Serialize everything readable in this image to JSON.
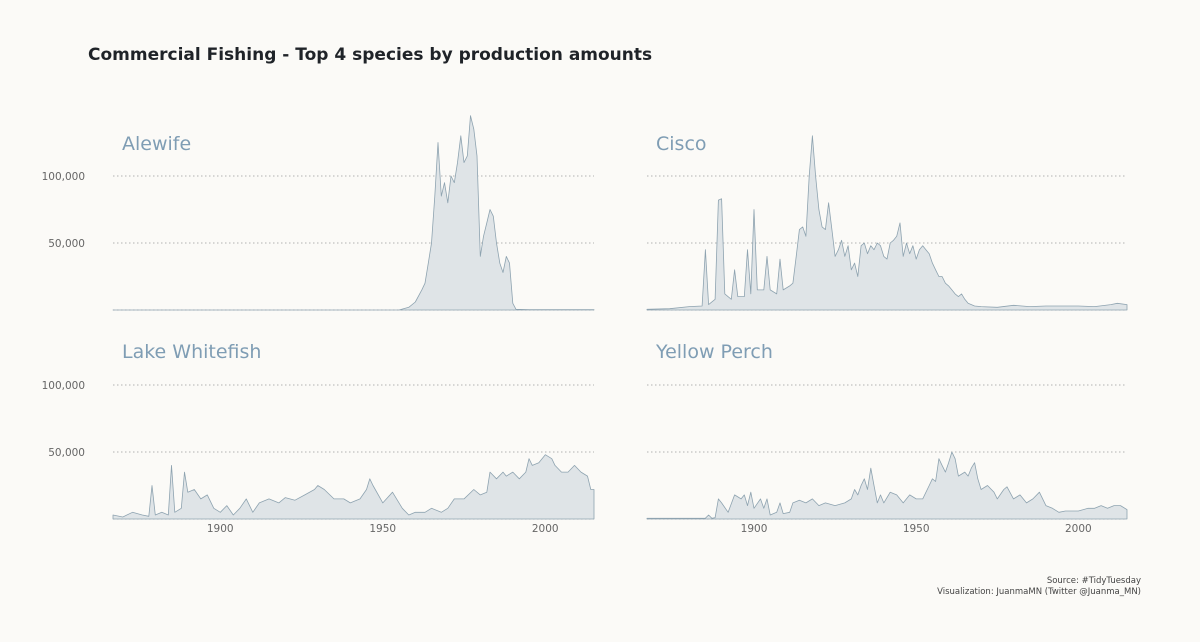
{
  "title": "Commercial Fishing - Top 4 species by production amounts",
  "caption": {
    "source": "Source: #TidyTuesday",
    "visualization": "Visualization: JuanmaMN (Twitter @Juanma_MN)"
  },
  "chart_data": {
    "type": "area",
    "facet_layout": "2x2",
    "xlim": [
      1867,
      2015
    ],
    "ylim": [
      0,
      140000
    ],
    "x_ticks": [
      1900,
      1950,
      2000
    ],
    "x_tick_labels": [
      "1900",
      "1950",
      "2000"
    ],
    "y_ticks": [
      50000,
      100000
    ],
    "y_tick_labels": [
      "50,000",
      "100,000"
    ],
    "grid": "horizontal dotted",
    "colors": {
      "fill": "#dfe4e7",
      "stroke": "#8ea3b0",
      "label": "#7f9db4"
    },
    "panels": [
      {
        "name": "Alewife",
        "points": [
          [
            1867,
            0
          ],
          [
            1955,
            0
          ],
          [
            1958,
            2000
          ],
          [
            1960,
            6000
          ],
          [
            1962,
            15000
          ],
          [
            1963,
            20000
          ],
          [
            1964,
            35000
          ],
          [
            1965,
            50000
          ],
          [
            1966,
            85000
          ],
          [
            1967,
            125000
          ],
          [
            1968,
            85000
          ],
          [
            1969,
            95000
          ],
          [
            1970,
            80000
          ],
          [
            1971,
            100000
          ],
          [
            1972,
            95000
          ],
          [
            1973,
            110000
          ],
          [
            1974,
            130000
          ],
          [
            1975,
            110000
          ],
          [
            1976,
            115000
          ],
          [
            1977,
            145000
          ],
          [
            1978,
            135000
          ],
          [
            1979,
            115000
          ],
          [
            1980,
            40000
          ],
          [
            1981,
            55000
          ],
          [
            1982,
            65000
          ],
          [
            1983,
            75000
          ],
          [
            1984,
            70000
          ],
          [
            1985,
            50000
          ],
          [
            1986,
            35000
          ],
          [
            1987,
            28000
          ],
          [
            1988,
            40000
          ],
          [
            1989,
            35000
          ],
          [
            1990,
            5000
          ],
          [
            1991,
            500
          ],
          [
            1995,
            300
          ],
          [
            2015,
            300
          ]
        ]
      },
      {
        "name": "Cisco",
        "points": [
          [
            1867,
            500
          ],
          [
            1874,
            1000
          ],
          [
            1880,
            2500
          ],
          [
            1884,
            3000
          ],
          [
            1885,
            45000
          ],
          [
            1886,
            4000
          ],
          [
            1888,
            8000
          ],
          [
            1889,
            82000
          ],
          [
            1890,
            83000
          ],
          [
            1891,
            12000
          ],
          [
            1893,
            8000
          ],
          [
            1894,
            30000
          ],
          [
            1895,
            10000
          ],
          [
            1897,
            10000
          ],
          [
            1898,
            45000
          ],
          [
            1899,
            12000
          ],
          [
            1900,
            75000
          ],
          [
            1901,
            15000
          ],
          [
            1903,
            15000
          ],
          [
            1904,
            40000
          ],
          [
            1905,
            15000
          ],
          [
            1907,
            12000
          ],
          [
            1908,
            38000
          ],
          [
            1909,
            15000
          ],
          [
            1911,
            18000
          ],
          [
            1912,
            20000
          ],
          [
            1913,
            40000
          ],
          [
            1914,
            60000
          ],
          [
            1915,
            62000
          ],
          [
            1916,
            55000
          ],
          [
            1917,
            100000
          ],
          [
            1918,
            130000
          ],
          [
            1919,
            100000
          ],
          [
            1920,
            75000
          ],
          [
            1921,
            62000
          ],
          [
            1922,
            60000
          ],
          [
            1923,
            80000
          ],
          [
            1924,
            60000
          ],
          [
            1925,
            40000
          ],
          [
            1926,
            45000
          ],
          [
            1927,
            52000
          ],
          [
            1928,
            40000
          ],
          [
            1929,
            48000
          ],
          [
            1930,
            30000
          ],
          [
            1931,
            35000
          ],
          [
            1932,
            25000
          ],
          [
            1933,
            48000
          ],
          [
            1934,
            50000
          ],
          [
            1935,
            42000
          ],
          [
            1936,
            48000
          ],
          [
            1937,
            45000
          ],
          [
            1938,
            50000
          ],
          [
            1939,
            48000
          ],
          [
            1940,
            40000
          ],
          [
            1941,
            38000
          ],
          [
            1942,
            50000
          ],
          [
            1943,
            52000
          ],
          [
            1944,
            55000
          ],
          [
            1945,
            65000
          ],
          [
            1946,
            40000
          ],
          [
            1947,
            50000
          ],
          [
            1948,
            42000
          ],
          [
            1949,
            48000
          ],
          [
            1950,
            38000
          ],
          [
            1951,
            45000
          ],
          [
            1952,
            48000
          ],
          [
            1953,
            45000
          ],
          [
            1954,
            42000
          ],
          [
            1955,
            35000
          ],
          [
            1956,
            30000
          ],
          [
            1957,
            25000
          ],
          [
            1958,
            25000
          ],
          [
            1959,
            20000
          ],
          [
            1960,
            18000
          ],
          [
            1961,
            15000
          ],
          [
            1962,
            12000
          ],
          [
            1963,
            10000
          ],
          [
            1964,
            12000
          ],
          [
            1965,
            8000
          ],
          [
            1966,
            5000
          ],
          [
            1968,
            3000
          ],
          [
            1970,
            2500
          ],
          [
            1975,
            2000
          ],
          [
            1980,
            3500
          ],
          [
            1985,
            2500
          ],
          [
            1990,
            3000
          ],
          [
            1995,
            3000
          ],
          [
            2000,
            3000
          ],
          [
            2005,
            2500
          ],
          [
            2010,
            4000
          ],
          [
            2012,
            5000
          ],
          [
            2015,
            4000
          ]
        ]
      },
      {
        "name": "Lake Whitefish",
        "points": [
          [
            1867,
            3000
          ],
          [
            1870,
            1500
          ],
          [
            1873,
            5000
          ],
          [
            1876,
            3000
          ],
          [
            1878,
            2000
          ],
          [
            1879,
            25000
          ],
          [
            1880,
            3000
          ],
          [
            1882,
            5000
          ],
          [
            1884,
            3000
          ],
          [
            1885,
            40000
          ],
          [
            1886,
            5000
          ],
          [
            1888,
            8000
          ],
          [
            1889,
            35000
          ],
          [
            1890,
            20000
          ],
          [
            1892,
            22000
          ],
          [
            1894,
            15000
          ],
          [
            1896,
            18000
          ],
          [
            1898,
            8000
          ],
          [
            1900,
            5000
          ],
          [
            1902,
            10000
          ],
          [
            1904,
            3000
          ],
          [
            1906,
            8000
          ],
          [
            1908,
            15000
          ],
          [
            1910,
            5000
          ],
          [
            1912,
            12000
          ],
          [
            1915,
            15000
          ],
          [
            1918,
            12000
          ],
          [
            1920,
            16000
          ],
          [
            1923,
            14000
          ],
          [
            1926,
            18000
          ],
          [
            1929,
            22000
          ],
          [
            1930,
            25000
          ],
          [
            1932,
            22000
          ],
          [
            1935,
            15000
          ],
          [
            1938,
            15000
          ],
          [
            1940,
            12000
          ],
          [
            1943,
            15000
          ],
          [
            1945,
            22000
          ],
          [
            1946,
            30000
          ],
          [
            1947,
            25000
          ],
          [
            1950,
            12000
          ],
          [
            1953,
            20000
          ],
          [
            1956,
            8000
          ],
          [
            1958,
            3000
          ],
          [
            1960,
            5000
          ],
          [
            1963,
            5000
          ],
          [
            1965,
            8000
          ],
          [
            1968,
            5000
          ],
          [
            1970,
            8000
          ],
          [
            1972,
            15000
          ],
          [
            1975,
            15000
          ],
          [
            1978,
            22000
          ],
          [
            1980,
            18000
          ],
          [
            1982,
            20000
          ],
          [
            1983,
            35000
          ],
          [
            1985,
            30000
          ],
          [
            1987,
            35000
          ],
          [
            1988,
            32000
          ],
          [
            1990,
            35000
          ],
          [
            1992,
            30000
          ],
          [
            1994,
            35000
          ],
          [
            1995,
            45000
          ],
          [
            1996,
            40000
          ],
          [
            1998,
            42000
          ],
          [
            2000,
            48000
          ],
          [
            2002,
            45000
          ],
          [
            2003,
            40000
          ],
          [
            2005,
            35000
          ],
          [
            2007,
            35000
          ],
          [
            2009,
            40000
          ],
          [
            2011,
            35000
          ],
          [
            2013,
            32000
          ],
          [
            2014,
            22000
          ],
          [
            2015,
            22000
          ]
        ]
      },
      {
        "name": "Yellow Perch",
        "points": [
          [
            1867,
            500
          ],
          [
            1880,
            500
          ],
          [
            1885,
            600
          ],
          [
            1886,
            3000
          ],
          [
            1887,
            500
          ],
          [
            1888,
            1000
          ],
          [
            1889,
            15000
          ],
          [
            1890,
            12000
          ],
          [
            1892,
            5000
          ],
          [
            1894,
            18000
          ],
          [
            1896,
            15000
          ],
          [
            1897,
            18000
          ],
          [
            1898,
            10000
          ],
          [
            1899,
            20000
          ],
          [
            1900,
            8000
          ],
          [
            1902,
            15000
          ],
          [
            1903,
            8000
          ],
          [
            1904,
            15000
          ],
          [
            1905,
            3000
          ],
          [
            1907,
            5000
          ],
          [
            1908,
            12000
          ],
          [
            1909,
            4000
          ],
          [
            1911,
            5000
          ],
          [
            1912,
            12000
          ],
          [
            1914,
            14000
          ],
          [
            1916,
            12000
          ],
          [
            1918,
            15000
          ],
          [
            1920,
            10000
          ],
          [
            1922,
            12000
          ],
          [
            1925,
            10000
          ],
          [
            1928,
            12000
          ],
          [
            1930,
            15000
          ],
          [
            1931,
            22000
          ],
          [
            1932,
            18000
          ],
          [
            1933,
            25000
          ],
          [
            1934,
            30000
          ],
          [
            1935,
            22000
          ],
          [
            1936,
            38000
          ],
          [
            1937,
            25000
          ],
          [
            1938,
            12000
          ],
          [
            1939,
            18000
          ],
          [
            1940,
            12000
          ],
          [
            1942,
            20000
          ],
          [
            1944,
            18000
          ],
          [
            1946,
            12000
          ],
          [
            1948,
            18000
          ],
          [
            1950,
            15000
          ],
          [
            1952,
            15000
          ],
          [
            1954,
            25000
          ],
          [
            1955,
            30000
          ],
          [
            1956,
            28000
          ],
          [
            1957,
            45000
          ],
          [
            1958,
            40000
          ],
          [
            1959,
            35000
          ],
          [
            1960,
            42000
          ],
          [
            1961,
            50000
          ],
          [
            1962,
            45000
          ],
          [
            1963,
            32000
          ],
          [
            1965,
            35000
          ],
          [
            1966,
            32000
          ],
          [
            1967,
            38000
          ],
          [
            1968,
            42000
          ],
          [
            1969,
            30000
          ],
          [
            1970,
            22000
          ],
          [
            1972,
            25000
          ],
          [
            1974,
            20000
          ],
          [
            1975,
            15000
          ],
          [
            1977,
            22000
          ],
          [
            1978,
            24000
          ],
          [
            1980,
            15000
          ],
          [
            1982,
            18000
          ],
          [
            1984,
            12000
          ],
          [
            1986,
            15000
          ],
          [
            1988,
            20000
          ],
          [
            1989,
            15000
          ],
          [
            1990,
            10000
          ],
          [
            1992,
            8000
          ],
          [
            1994,
            5000
          ],
          [
            1996,
            6000
          ],
          [
            2000,
            6000
          ],
          [
            2003,
            8000
          ],
          [
            2005,
            8000
          ],
          [
            2007,
            10000
          ],
          [
            2009,
            8000
          ],
          [
            2011,
            10000
          ],
          [
            2013,
            10000
          ],
          [
            2015,
            7000
          ]
        ]
      }
    ]
  }
}
